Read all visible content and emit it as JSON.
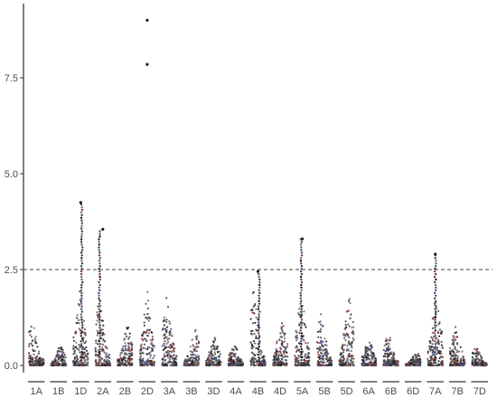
{
  "chart_data": {
    "type": "scatter",
    "subtype": "manhattan",
    "title": "",
    "xlabel": "",
    "ylabel": "",
    "ylim": [
      0,
      9.0
    ],
    "y_ticks": [
      0.0,
      2.5,
      5.0,
      7.5
    ],
    "y_tick_labels": [
      "0.0",
      "2.5",
      "5.0",
      "7.5"
    ],
    "threshold": 2.5,
    "threshold_style": "dashed",
    "grid": false,
    "legend": "none",
    "point_colors": [
      "#1a1a1a",
      "#3a3a3a",
      "#8b3a3a",
      "#3a4a7a",
      "#6a6a6a"
    ],
    "categories": [
      "1A",
      "1B",
      "1D",
      "2A",
      "2B",
      "2D",
      "3A",
      "3B",
      "3D",
      "4A",
      "4B",
      "4D",
      "5A",
      "5B",
      "5D",
      "6A",
      "6B",
      "6D",
      "7A",
      "7B",
      "7D"
    ],
    "chromosome_max": [
      1.3,
      0.55,
      4.25,
      3.55,
      1.1,
      9.0,
      1.9,
      1.05,
      0.75,
      0.6,
      2.45,
      1.25,
      3.3,
      1.4,
      1.9,
      0.75,
      0.9,
      0.35,
      2.9,
      1.05,
      0.6
    ],
    "notable_points": [
      {
        "chromosome": "1D",
        "y": 4.25
      },
      {
        "chromosome": "2A",
        "y": 3.55
      },
      {
        "chromosome": "2D",
        "y": 9.0
      },
      {
        "chromosome": "2D",
        "y": 7.85
      },
      {
        "chromosome": "4B",
        "y": 2.45
      },
      {
        "chromosome": "5A",
        "y": 3.3
      },
      {
        "chromosome": "7A",
        "y": 2.9
      }
    ]
  }
}
